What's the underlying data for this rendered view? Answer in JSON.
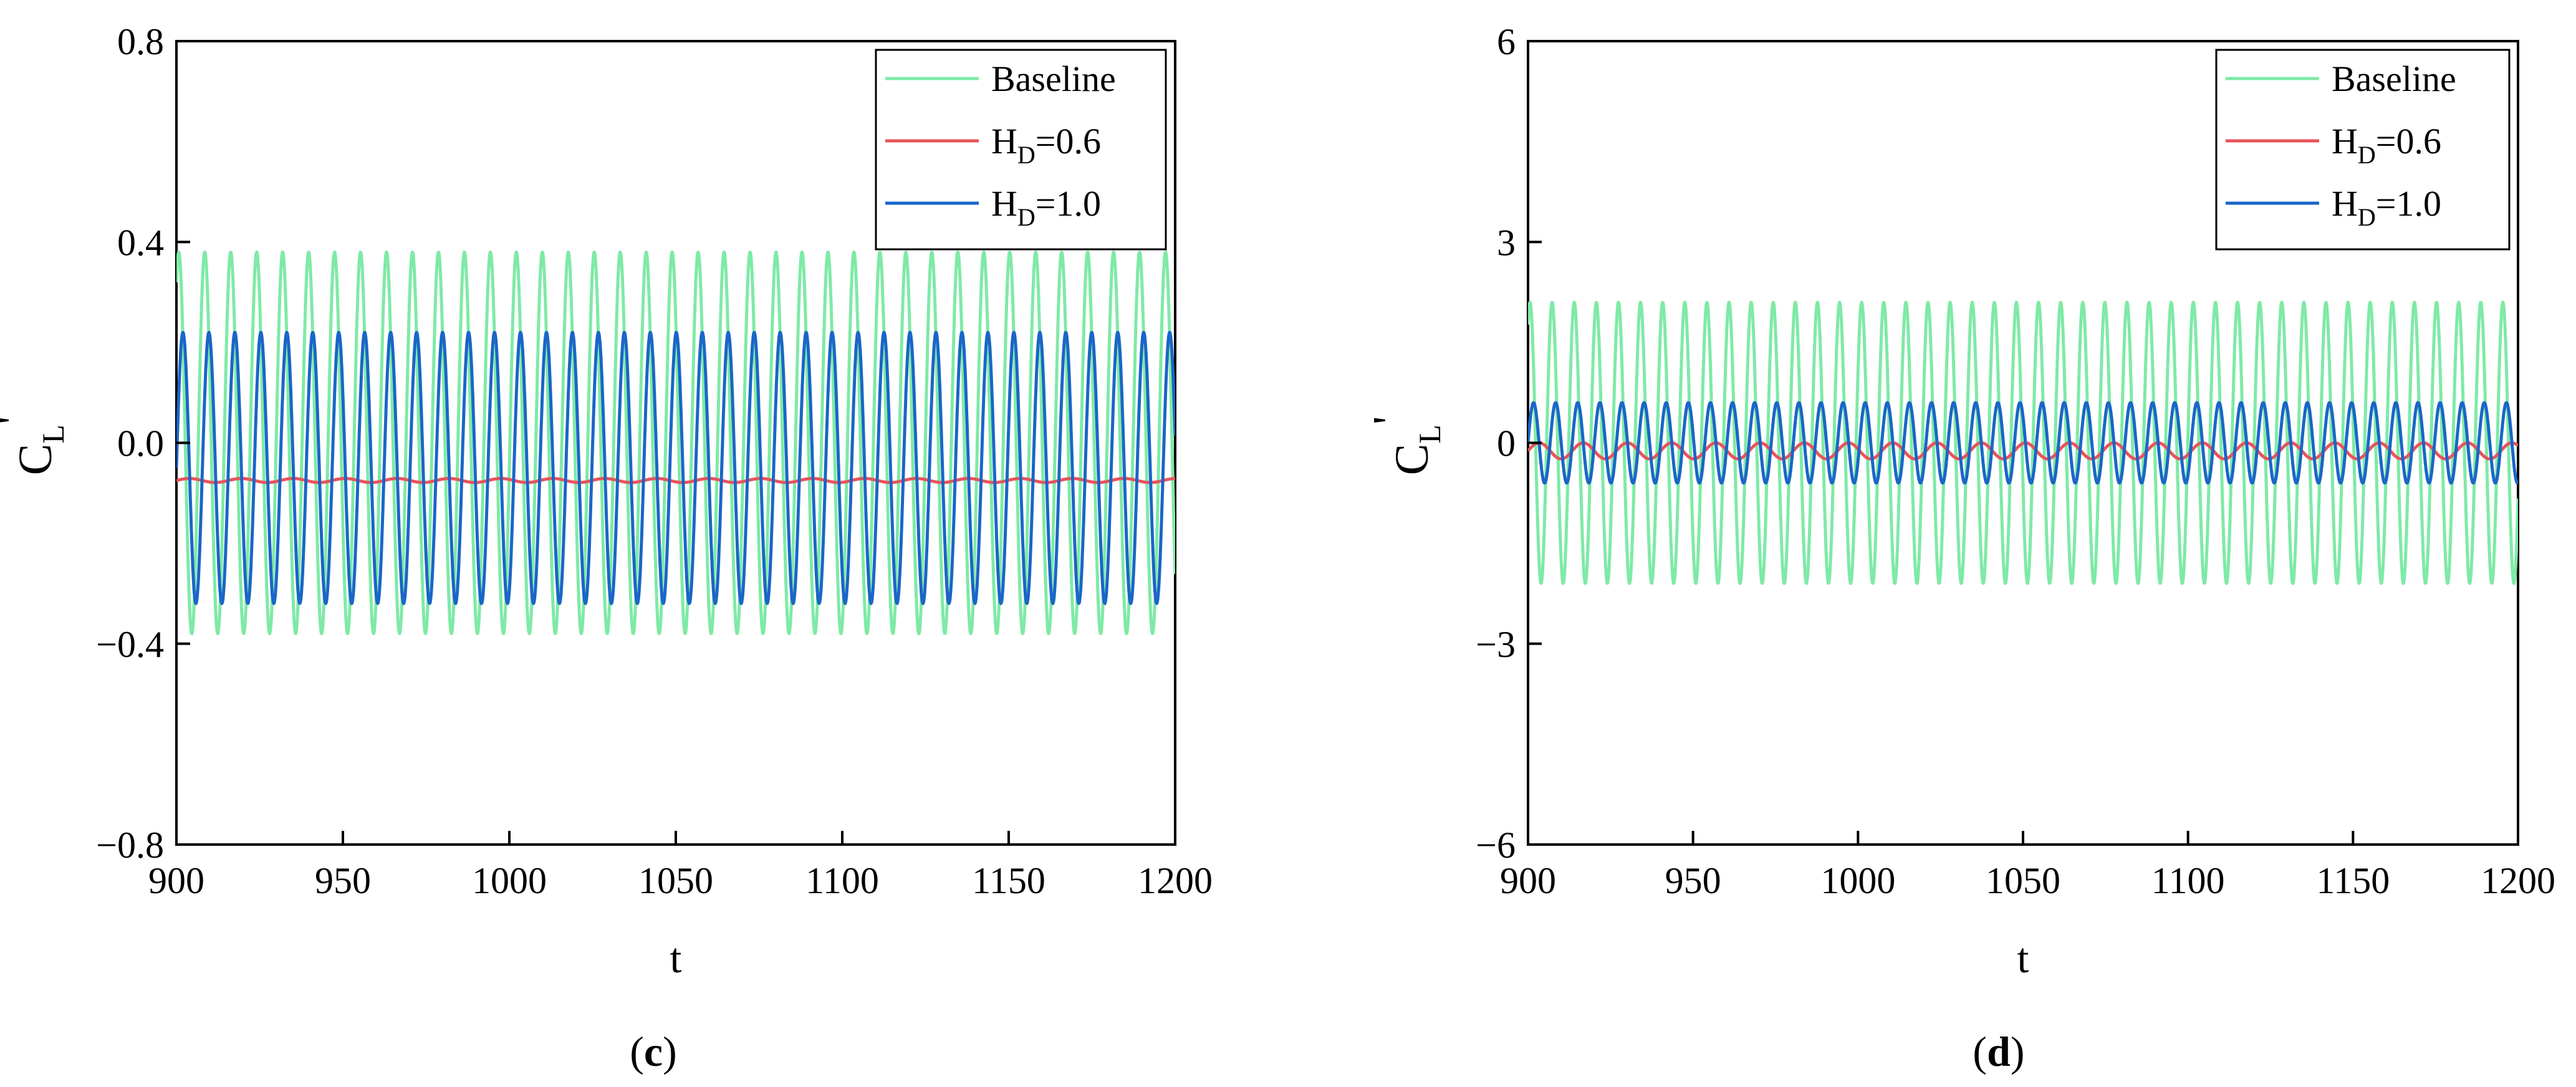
{
  "chart_data": [
    {
      "type": "line",
      "panel": "c",
      "caption": {
        "open": "(",
        "letter": "c",
        "close": ")"
      },
      "xlabel": "t",
      "ylabel": {
        "main": "C",
        "sub": "L",
        "prime": "'"
      },
      "xlim": [
        900,
        1200
      ],
      "ylim": [
        -0.8,
        0.8
      ],
      "xticks": [
        900,
        950,
        1000,
        1050,
        1100,
        1150,
        1200
      ],
      "yticks": [
        -0.8,
        -0.4,
        0.0,
        0.4,
        0.8
      ],
      "xtick_labels": [
        "900",
        "950",
        "1000",
        "1050",
        "1100",
        "1150",
        "1200"
      ],
      "ytick_labels": [
        "−0.8",
        "−0.4",
        "0.0",
        "0.4",
        "0.8"
      ],
      "legend_position": "top-right",
      "series": [
        {
          "name": "Baseline",
          "label": {
            "main": "Baseline"
          },
          "color": "#7eeaa6",
          "mean": 0.0,
          "amplitude": 0.38,
          "period": 7.8,
          "phase": 1.0
        },
        {
          "name": "H_D=0.6",
          "label": {
            "main": "H",
            "sub": "D",
            "rest": "=0.6"
          },
          "color": "#e8545a",
          "mean": -0.075,
          "amplitude": 0.004,
          "period": 15.6,
          "phase": 0.0
        },
        {
          "name": "H_D=1.0",
          "label": {
            "main": "H",
            "sub": "D",
            "rest": "=1.0"
          },
          "color": "#1a66c8",
          "mean": -0.05,
          "amplitude": 0.27,
          "period": 7.8,
          "phase": 0.0
        }
      ]
    },
    {
      "type": "line",
      "panel": "d",
      "caption": {
        "open": "(",
        "letter": "d",
        "close": ")"
      },
      "xlabel": "t",
      "ylabel": {
        "main": "C",
        "sub": "L",
        "prime": "'"
      },
      "xlim": [
        900,
        1200
      ],
      "ylim": [
        -6,
        6
      ],
      "xticks": [
        900,
        950,
        1000,
        1050,
        1100,
        1150,
        1200
      ],
      "yticks": [
        -6,
        -3,
        0,
        3,
        6
      ],
      "xtick_labels": [
        "900",
        "950",
        "1000",
        "1050",
        "1100",
        "1150",
        "1200"
      ],
      "ytick_labels": [
        "−6",
        "−3",
        "0",
        "3",
        "6"
      ],
      "legend_position": "top-right",
      "series": [
        {
          "name": "Baseline",
          "label": {
            "main": "Baseline"
          },
          "color": "#7eeaa6",
          "mean": 0.0,
          "amplitude": 2.1,
          "period": 6.7,
          "phase": 1.0
        },
        {
          "name": "H_D=0.6",
          "label": {
            "main": "H",
            "sub": "D",
            "rest": "=0.6"
          },
          "color": "#e8545a",
          "mean": -0.12,
          "amplitude": 0.12,
          "period": 13.4,
          "phase": 0.0
        },
        {
          "name": "H_D=1.0",
          "label": {
            "main": "H",
            "sub": "D",
            "rest": "=1.0"
          },
          "color": "#1a66c8",
          "mean": 0.0,
          "amplitude": 0.6,
          "period": 6.7,
          "phase": 0.0
        }
      ]
    }
  ]
}
